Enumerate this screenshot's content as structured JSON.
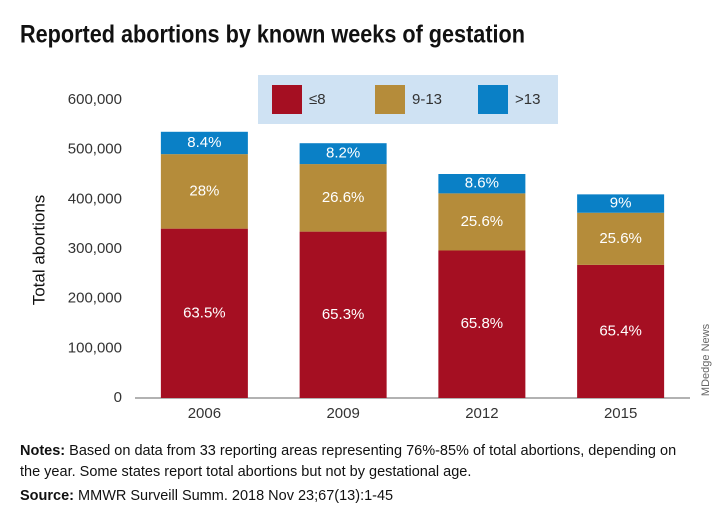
{
  "chart_data": {
    "type": "stacked_bar",
    "title": "Reported abortions by known weeks of gestation",
    "y_label": "Total abortions",
    "categories": [
      "2006",
      "2009",
      "2012",
      "2015"
    ],
    "series": [
      {
        "name": "≤8",
        "color": "#a50f22",
        "values": [
          341000,
          335000,
          297000,
          268000
        ],
        "value_labels": [
          "63.5%",
          "65.3%",
          "65.8%",
          "65.4%"
        ]
      },
      {
        "name": "9-13",
        "color": "#b58c3a",
        "values": [
          150000,
          136000,
          115000,
          105000
        ],
        "value_labels": [
          "28%",
          "26.6%",
          "25.6%",
          "25.6%"
        ]
      },
      {
        "name": ">13",
        "color": "#0a80c6",
        "values": [
          45000,
          42000,
          39000,
          37000
        ],
        "value_labels": [
          "8.4%",
          "8.2%",
          "8.6%",
          "9%"
        ]
      }
    ],
    "ylim": [
      0,
      600000
    ],
    "yticks": [
      0,
      {
        "value": 100000,
        "label": "100,000"
      },
      {
        "value": 200000,
        "label": "200,000"
      },
      {
        "value": 300000,
        "label": "300,000"
      },
      {
        "value": 400000,
        "label": "400,000"
      },
      {
        "value": 500000,
        "label": "500,000"
      },
      {
        "value": 600000,
        "label": "600,000"
      }
    ],
    "legend": "top",
    "grid": false,
    "credit": "MDedge News",
    "notes_label": "Notes:",
    "notes": "Based on data from 33 reporting areas representing 76%-85% of total abortions, depending on the year. Some states report total abortions but not by gestational age.",
    "source_label": "Source:",
    "source": "MMWR Surveill Summ. 2018 Nov 23;67(13):1-45"
  }
}
